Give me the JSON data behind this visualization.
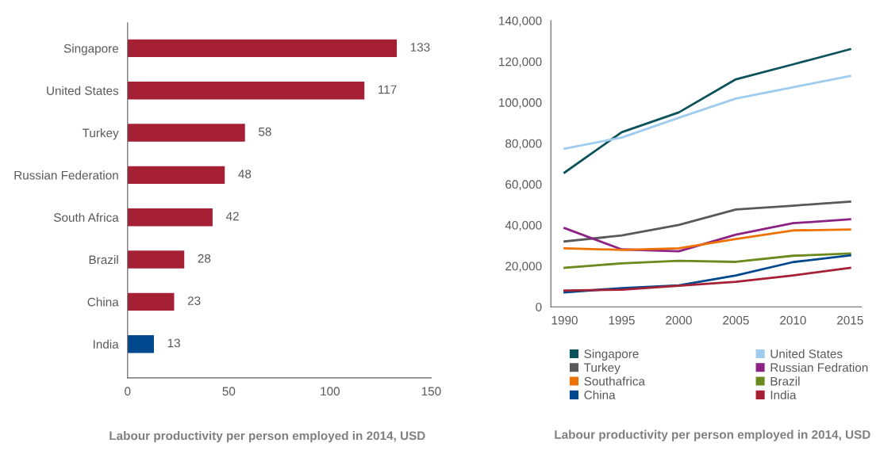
{
  "chart_data": [
    {
      "type": "bar",
      "orientation": "horizontal",
      "xlabel": "Labour productivity per person employed in 2014, USD",
      "categories": [
        "Singapore",
        "United States",
        "Turkey",
        "Russian Federation",
        "South Africa",
        "Brazil",
        "China",
        "India"
      ],
      "values": [
        133,
        117,
        58,
        48,
        42,
        28,
        23,
        13
      ],
      "colors": [
        "#a52035",
        "#a52035",
        "#a52035",
        "#a52035",
        "#a52035",
        "#a52035",
        "#a52035",
        "#00488d"
      ],
      "xlim": [
        0,
        150
      ],
      "xticks": [
        0,
        50,
        100,
        150
      ],
      "data_labels": true,
      "grid": false
    },
    {
      "type": "line",
      "xlabel": "Labour productivity per person employed in 2014, USD",
      "x": [
        1990,
        1995,
        2000,
        2005,
        2010,
        2015
      ],
      "xlim": [
        1988.8,
        2016
      ],
      "xticks": [
        1990,
        1995,
        2000,
        2005,
        2010,
        2015
      ],
      "ylim": [
        0,
        140000
      ],
      "yticks": [
        0,
        {
          "value": 20000,
          "label": "20,000"
        },
        {
          "value": 40000,
          "label": "40,000"
        },
        {
          "value": 60000,
          "label": "60,000"
        },
        {
          "value": 80000,
          "label": "80,000"
        },
        {
          "value": 100000,
          "label": "100,000"
        },
        {
          "value": 120000,
          "label": "120,000"
        },
        {
          "value": 140000,
          "label": "140,000"
        }
      ],
      "grid": false,
      "legend": "bottom",
      "marker": "none",
      "line_style": "solid",
      "series": [
        {
          "name": "Singapore",
          "color": "#0b525b",
          "values": [
            65700,
            85400,
            95100,
            111300,
            118600,
            126000
          ]
        },
        {
          "name": "United States",
          "color": "#9ecbee",
          "values": [
            77400,
            82800,
            92500,
            101900,
            107400,
            112900
          ]
        },
        {
          "name": "Turkey",
          "color": "#595959",
          "values": [
            32000,
            34900,
            40100,
            47600,
            49500,
            51500
          ]
        },
        {
          "name": "Russian Fedration",
          "color": "#8b2284",
          "values": [
            38500,
            28100,
            27200,
            35300,
            40900,
            42800
          ]
        },
        {
          "name": "Southafrica",
          "color": "#ee7202",
          "values": [
            28600,
            27900,
            28600,
            33200,
            37400,
            37800
          ]
        },
        {
          "name": "Brazil",
          "color": "#6b8a1d",
          "values": [
            19100,
            21300,
            22500,
            22000,
            25000,
            26100
          ]
        },
        {
          "name": "China",
          "color": "#00488d",
          "values": [
            7100,
            9200,
            10500,
            15400,
            21900,
            25200
          ]
        },
        {
          "name": "India",
          "color": "#a52035",
          "values": [
            8000,
            8400,
            10300,
            12300,
            15400,
            19100
          ]
        }
      ]
    }
  ]
}
